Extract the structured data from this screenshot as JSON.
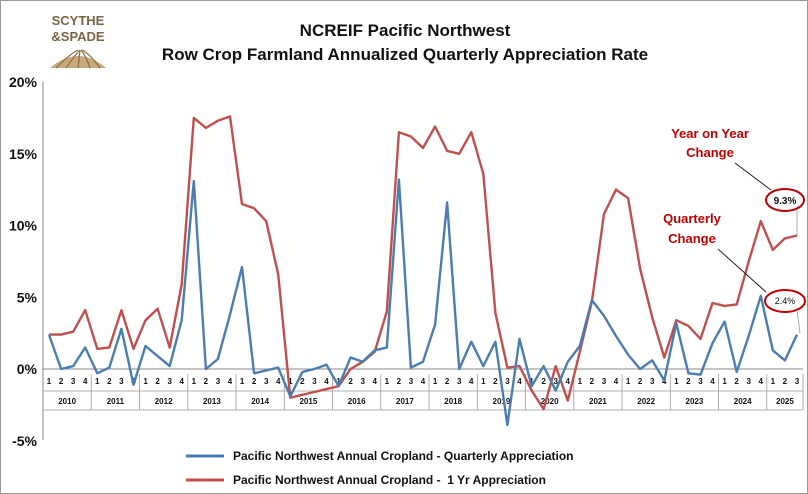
{
  "logo": {
    "line1": "SCYTHE",
    "line2": "&SPADE"
  },
  "chart_data": {
    "type": "line",
    "title": "NCREIF Pacific Northwest",
    "subtitle": "Row Crop Farmland Annualized Quarterly Appreciation Rate",
    "xlabel": "",
    "ylabel": "",
    "ylim": [
      -5,
      20
    ],
    "yticks": [
      -5,
      0,
      5,
      10,
      15,
      20
    ],
    "ytick_labels": [
      "-5%",
      "0%",
      "5%",
      "10%",
      "15%",
      "20%"
    ],
    "grid": false,
    "legend": "bottom-center",
    "years": [
      "2010",
      "2011",
      "2012",
      "2013",
      "2014",
      "2015",
      "2016",
      "2017",
      "2018",
      "2019",
      "2020",
      "2021",
      "2022",
      "2023",
      "2024",
      "2025"
    ],
    "quarters": [
      "1",
      "2",
      "3",
      "4"
    ],
    "last_year_quarters": 3,
    "series": [
      {
        "name": "Pacific Northwest Annual Cropland - Quarterly Appreciation",
        "color": "#4a7eb0",
        "values": [
          2.4,
          0.0,
          0.2,
          1.5,
          -0.3,
          0.1,
          2.8,
          -1.1,
          1.6,
          0.9,
          0.2,
          3.4,
          13.1,
          0.0,
          0.7,
          3.8,
          7.1,
          -0.3,
          -0.1,
          0.1,
          -1.9,
          -0.2,
          0.0,
          0.3,
          -1.2,
          0.8,
          0.5,
          1.3,
          1.5,
          13.2,
          0.1,
          0.5,
          3.1,
          11.6,
          0.0,
          1.9,
          0.2,
          1.9,
          -3.9,
          2.1,
          -1.2,
          0.2,
          -1.5,
          0.5,
          1.6,
          4.8,
          3.7,
          2.3,
          1.0,
          0.0,
          0.6,
          -0.8,
          3.2,
          -0.3,
          -0.4,
          1.8,
          3.3,
          -0.2,
          2.3,
          5.1,
          1.3,
          0.6,
          2.4
        ]
      },
      {
        "name": "Pacific Northwest Annual Cropland -  1 Yr Appreciation",
        "color": "#c0504d",
        "values": [
          2.4,
          2.4,
          2.6,
          4.1,
          1.4,
          1.5,
          4.1,
          1.4,
          3.4,
          4.2,
          1.5,
          5.9,
          17.5,
          16.8,
          17.3,
          17.6,
          11.5,
          11.2,
          10.3,
          6.6,
          -2.0,
          -1.8,
          -1.6,
          -1.4,
          -1.2,
          0.0,
          0.5,
          1.2,
          4.0,
          16.5,
          16.2,
          15.4,
          16.9,
          15.2,
          15.0,
          16.5,
          13.6,
          3.9,
          0.1,
          0.2,
          -1.5,
          -2.8,
          0.2,
          -2.2,
          1.2,
          4.7,
          10.8,
          12.5,
          11.9,
          7.0,
          3.6,
          0.8,
          3.4,
          3.0,
          2.1,
          4.6,
          4.4,
          4.5,
          7.5,
          10.3,
          8.3,
          9.1,
          9.3
        ]
      }
    ],
    "annotations": [
      {
        "text_line1": "Year on Year",
        "text_line2": "Change",
        "value": "9.3%",
        "series": 1
      },
      {
        "text_line1": "Quarterly",
        "text_line2": "Change",
        "value": "2.4%",
        "series": 0
      }
    ]
  }
}
